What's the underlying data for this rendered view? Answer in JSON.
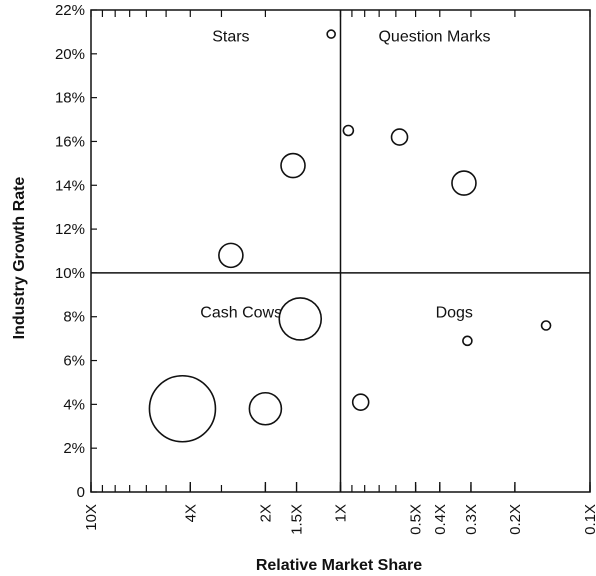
{
  "chart_data": {
    "type": "scatter",
    "subtype": "bubble",
    "title": "",
    "xlabel": "Relative Market Share",
    "ylabel": "Industry Growth Rate",
    "x_scale": "log",
    "x_reversed": true,
    "xlim": [
      10,
      0.1
    ],
    "ylim": [
      0,
      22
    ],
    "grid": false,
    "x_ticks": [
      {
        "value": 10,
        "label": "10X"
      },
      {
        "value": 4,
        "label": "4X"
      },
      {
        "value": 2,
        "label": "2X"
      },
      {
        "value": 1.5,
        "label": "1.5X"
      },
      {
        "value": 1,
        "label": "1X"
      },
      {
        "value": 0.5,
        "label": "0.5X"
      },
      {
        "value": 0.4,
        "label": "0.4X"
      },
      {
        "value": 0.3,
        "label": "0.3X"
      },
      {
        "value": 0.2,
        "label": "0.2X"
      },
      {
        "value": 0.1,
        "label": "0.1X"
      }
    ],
    "y_ticks": [
      {
        "value": 0,
        "label": "0"
      },
      {
        "value": 2,
        "label": "2%"
      },
      {
        "value": 4,
        "label": "4%"
      },
      {
        "value": 6,
        "label": "6%"
      },
      {
        "value": 8,
        "label": "8%"
      },
      {
        "value": 10,
        "label": "10%"
      },
      {
        "value": 12,
        "label": "12%"
      },
      {
        "value": 14,
        "label": "14%"
      },
      {
        "value": 16,
        "label": "16%"
      },
      {
        "value": 18,
        "label": "18%"
      },
      {
        "value": 20,
        "label": "20%"
      },
      {
        "value": 22,
        "label": "22%"
      }
    ],
    "dividers": {
      "x": 1,
      "y": 10
    },
    "quadrants": [
      {
        "label": "Stars",
        "x": 2.75,
        "y": 20.8
      },
      {
        "label": "Question Marks",
        "x": 0.42,
        "y": 20.8
      },
      {
        "label": "Cash Cows",
        "x": 2.5,
        "y": 8.2
      },
      {
        "label": "Dogs",
        "x": 0.35,
        "y": 8.2
      }
    ],
    "points": [
      {
        "x": 1.09,
        "y": 20.9,
        "size": 4
      },
      {
        "x": 2.75,
        "y": 10.8,
        "size": 12
      },
      {
        "x": 1.55,
        "y": 14.9,
        "size": 12
      },
      {
        "x": 4.3,
        "y": 3.8,
        "size": 33
      },
      {
        "x": 2.0,
        "y": 3.8,
        "size": 16
      },
      {
        "x": 1.45,
        "y": 7.9,
        "size": 21
      },
      {
        "x": 0.93,
        "y": 16.5,
        "size": 5
      },
      {
        "x": 0.58,
        "y": 16.2,
        "size": 8
      },
      {
        "x": 0.32,
        "y": 14.1,
        "size": 12
      },
      {
        "x": 0.83,
        "y": 4.1,
        "size": 8
      },
      {
        "x": 0.31,
        "y": 6.9,
        "size": 4.5
      },
      {
        "x": 0.15,
        "y": 7.6,
        "size": 4.5
      }
    ]
  }
}
